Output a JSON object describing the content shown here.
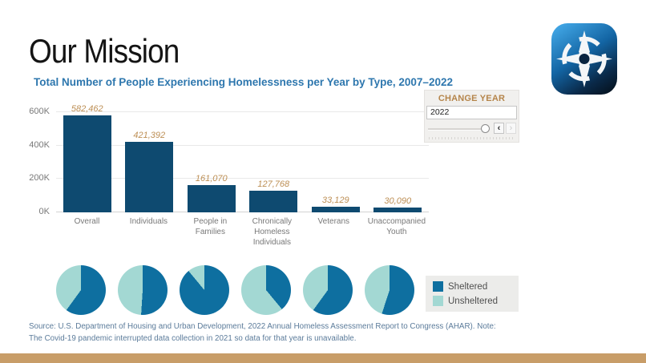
{
  "slide": {
    "title": "Our Mission"
  },
  "icons": {
    "logo": "compass-icon"
  },
  "chart_data": [
    {
      "type": "bar",
      "title": "Total Number of People Experiencing Homelessness per Year by Type, 2007–2022",
      "categories": [
        "Overall",
        "Individuals",
        "People in Families",
        "Chronically Homeless Individuals",
        "Veterans",
        "Unaccompanied Youth"
      ],
      "values": [
        582462,
        421392,
        161070,
        127768,
        33129,
        30090
      ],
      "value_labels": [
        "582,462",
        "421,392",
        "161,070",
        "127,768",
        "33,129",
        "30,090"
      ],
      "yticks": [
        {
          "label": "0K",
          "value": 0
        },
        {
          "label": "200K",
          "value": 200000
        },
        {
          "label": "400K",
          "value": 400000
        },
        {
          "label": "600K",
          "value": 600000
        }
      ],
      "ylim": [
        0,
        650000
      ],
      "grid": true,
      "bar_color": "#0e4a70",
      "value_label_color": "#bd8f55"
    },
    {
      "type": "pie",
      "categories": [
        "Overall",
        "Individuals",
        "People in Families",
        "Chronically Homeless Individuals",
        "Veterans",
        "Unaccompanied Youth"
      ],
      "series": [
        {
          "name": "Sheltered",
          "color": "#0e6fa0",
          "values_pct": [
            60,
            51,
            89,
            39,
            60,
            55
          ]
        },
        {
          "name": "Unsheltered",
          "color": "#a3d8d3",
          "values_pct": [
            40,
            49,
            11,
            61,
            40,
            45
          ]
        }
      ],
      "legend_position": "right"
    }
  ],
  "year_control": {
    "header": "CHANGE YEAR",
    "value": "2022",
    "prev_label": "‹",
    "next_label": "›"
  },
  "source_note": "Source: U.S. Department of Housing and Urban Development, 2022 Annual Homeless Assessment Report to Congress (AHAR). Note: The Covid-19 pandemic interrupted data collection in 2021 so data for that year is unavailable.",
  "colors": {
    "chart_title": "#2e77ae",
    "footer_bar": "#c89d68",
    "panel_header": "#b5854b"
  }
}
